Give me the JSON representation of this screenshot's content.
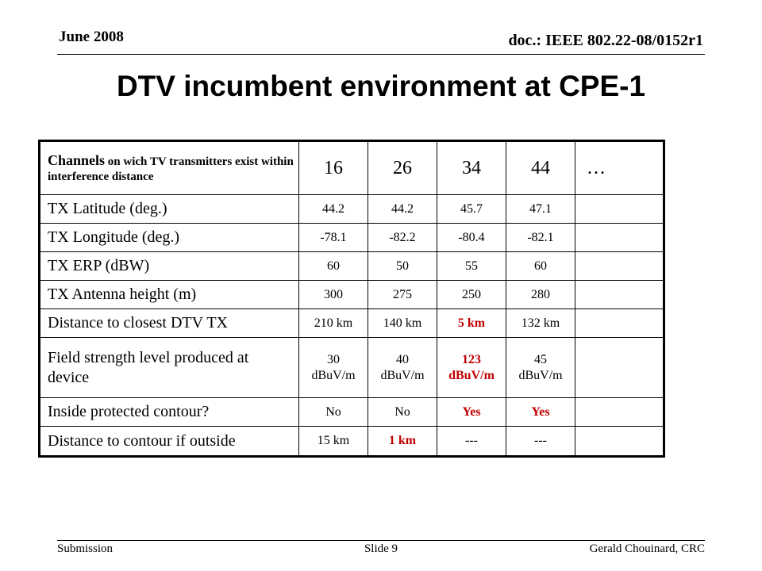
{
  "header": {
    "date": "June 2008",
    "doc_id": "doc.: IEEE 802.22-08/0152r1"
  },
  "title": "DTV incumbent environment at CPE-1",
  "table": {
    "header_label_bold": "Channels",
    "header_label_rest": " on wich TV transmitters exist within interference distance",
    "channels": [
      "16",
      "26",
      "34",
      "44",
      "…"
    ],
    "rows": [
      {
        "label": "TX Latitude (deg.)",
        "values": [
          "44.2",
          "44.2",
          "45.7",
          "47.1",
          ""
        ]
      },
      {
        "label": "TX Longitude (deg.)",
        "values": [
          "-78.1",
          "-82.2",
          "-80.4",
          "-82.1",
          ""
        ]
      },
      {
        "label": "TX ERP (dBW)",
        "values": [
          "60",
          "50",
          "55",
          "60",
          ""
        ]
      },
      {
        "label": "TX Antenna height (m)",
        "values": [
          "300",
          "275",
          "250",
          "280",
          ""
        ]
      },
      {
        "label": "Distance to closest DTV TX",
        "values": [
          "210 km",
          "140 km",
          "5 km",
          "132 km",
          ""
        ]
      },
      {
        "label": "Field strength level produced at device",
        "values": [
          "30 dBuV/m",
          "40 dBuV/m",
          "123 dBuV/m",
          "45 dBuV/m",
          ""
        ]
      },
      {
        "label": "Inside protected contour?",
        "values": [
          "No",
          "No",
          "Yes",
          "Yes",
          ""
        ]
      },
      {
        "label": "Distance to contour if outside",
        "values": [
          "15 km",
          "1 km",
          "---",
          "---",
          ""
        ]
      }
    ],
    "highlight_color": "#c00000"
  },
  "footer": {
    "left": "Submission",
    "center": "Slide 9",
    "right": "Gerald Chouinard, CRC"
  }
}
